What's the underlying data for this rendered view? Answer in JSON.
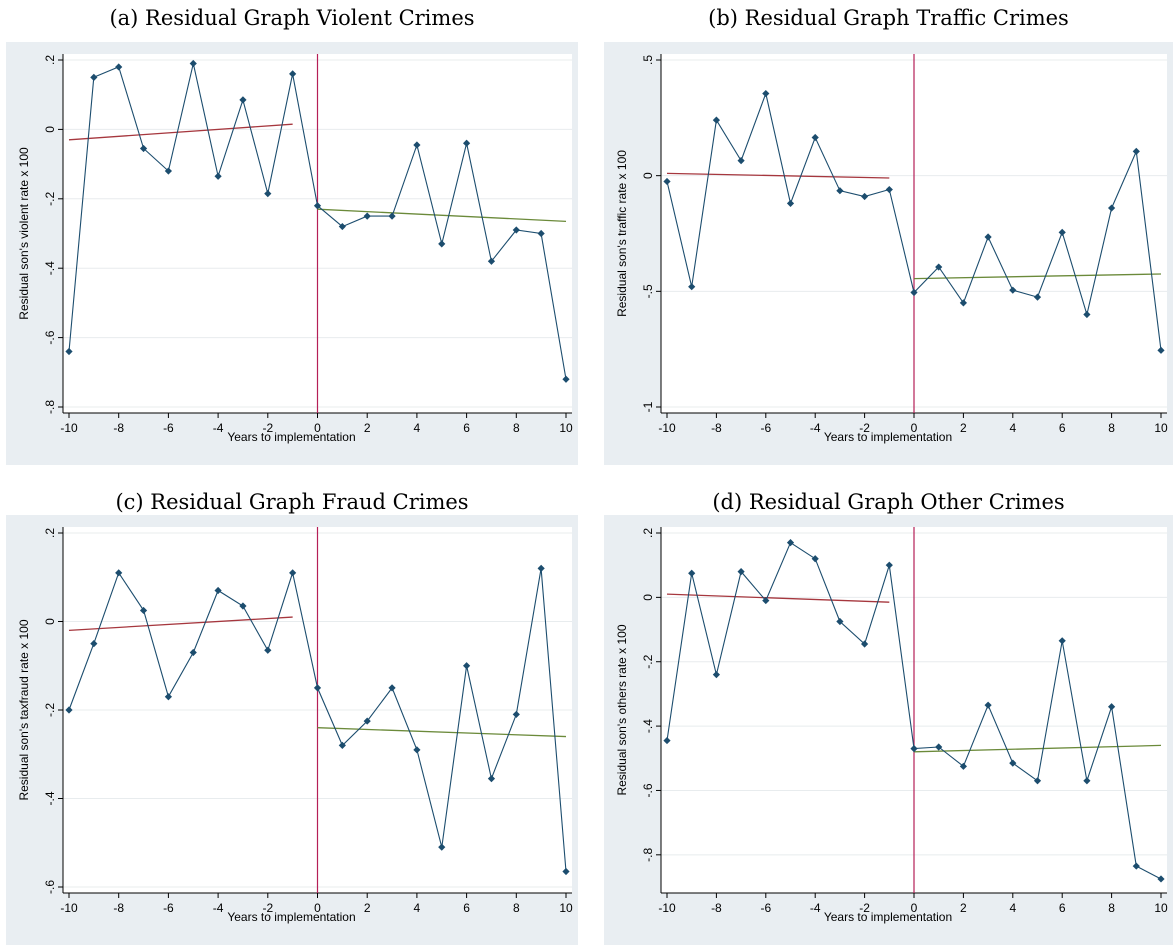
{
  "colors": {
    "panel_bg": "#e9eef2",
    "plot_bg": "#ffffff",
    "series": "#1c4d6e",
    "vline": "#b51f57",
    "fit_pre": "#a6373e",
    "fit_post": "#6b8a3a",
    "grid": "#e8ecee"
  },
  "chart_data": [
    {
      "type": "line",
      "caption": "(a) Residual Graph Violent Crimes",
      "xlabel": "Years to implementation",
      "ylabel": "Residual son's violent rate x 100",
      "xlim": [
        -10,
        10
      ],
      "ylim": [
        -0.8,
        0.2
      ],
      "xticks": [
        -10,
        -8,
        -6,
        -4,
        -2,
        0,
        2,
        4,
        6,
        8,
        10
      ],
      "yticks": [
        -0.8,
        -0.6,
        -0.4,
        -0.2,
        0,
        0.2
      ],
      "ytick_labels": [
        "-.8",
        "-.6",
        "-.4",
        "-.2",
        "0",
        ".2"
      ],
      "x": [
        -10,
        -9,
        -8,
        -7,
        -6,
        -5,
        -4,
        -3,
        -2,
        -1,
        0,
        1,
        2,
        3,
        4,
        5,
        6,
        7,
        8,
        9,
        10
      ],
      "values": [
        -0.64,
        0.15,
        0.18,
        -0.055,
        -0.12,
        0.19,
        -0.135,
        0.085,
        -0.185,
        0.16,
        -0.22,
        -0.28,
        -0.25,
        -0.25,
        -0.045,
        -0.33,
        -0.04,
        -0.38,
        -0.29,
        -0.3,
        -0.72
      ],
      "fit_pre": {
        "x": [
          -10,
          -1
        ],
        "y": [
          -0.03,
          0.015
        ]
      },
      "fit_post": {
        "x": [
          0,
          10
        ],
        "y": [
          -0.23,
          -0.265
        ]
      },
      "vline_x": 0
    },
    {
      "type": "line",
      "caption": "(b) Residual Graph Traffic Crimes",
      "xlabel": "Years to implementation",
      "ylabel": "Residual son's traffic rate x 100",
      "xlim": [
        -10,
        10
      ],
      "ylim": [
        -1,
        0.5
      ],
      "xticks": [
        -10,
        -8,
        -6,
        -4,
        -2,
        0,
        2,
        4,
        6,
        8,
        10
      ],
      "yticks": [
        -1,
        -0.5,
        0,
        0.5
      ],
      "ytick_labels": [
        "-1",
        "-.5",
        "0",
        ".5"
      ],
      "x": [
        -10,
        -9,
        -8,
        -7,
        -6,
        -5,
        -4,
        -3,
        -2,
        -1,
        0,
        1,
        2,
        3,
        4,
        5,
        6,
        7,
        8,
        9,
        10
      ],
      "values": [
        -0.025,
        -0.48,
        0.24,
        0.065,
        0.355,
        -0.12,
        0.165,
        -0.065,
        -0.09,
        -0.06,
        -0.505,
        -0.395,
        -0.55,
        -0.265,
        -0.495,
        -0.525,
        -0.245,
        -0.6,
        -0.14,
        0.105,
        -0.755
      ],
      "fit_pre": {
        "x": [
          -10,
          -1
        ],
        "y": [
          0.01,
          -0.01
        ]
      },
      "fit_post": {
        "x": [
          0,
          10
        ],
        "y": [
          -0.445,
          -0.425
        ]
      },
      "vline_x": 0
    },
    {
      "type": "line",
      "caption": "(c) Residual Graph Fraud Crimes",
      "xlabel": "Years to implementation",
      "ylabel": "Residual son's taxfraud rate x 100",
      "xlim": [
        -10,
        10
      ],
      "ylim": [
        -0.6,
        0.2
      ],
      "xticks": [
        -10,
        -8,
        -6,
        -4,
        -2,
        0,
        2,
        4,
        6,
        8,
        10
      ],
      "yticks": [
        -0.6,
        -0.4,
        -0.2,
        0,
        0.2
      ],
      "ytick_labels": [
        "-.6",
        "-.4",
        "-.2",
        "0",
        ".2"
      ],
      "x": [
        -10,
        -9,
        -8,
        -7,
        -6,
        -5,
        -4,
        -3,
        -2,
        -1,
        0,
        1,
        2,
        3,
        4,
        5,
        6,
        7,
        8,
        9,
        10
      ],
      "values": [
        -0.2,
        -0.05,
        0.11,
        0.025,
        -0.17,
        -0.07,
        0.07,
        0.035,
        -0.065,
        0.11,
        -0.15,
        -0.28,
        -0.225,
        -0.15,
        -0.29,
        -0.51,
        -0.1,
        -0.355,
        -0.21,
        0.12,
        -0.565
      ],
      "fit_pre": {
        "x": [
          -10,
          -1
        ],
        "y": [
          -0.02,
          0.01
        ]
      },
      "fit_post": {
        "x": [
          0,
          10
        ],
        "y": [
          -0.24,
          -0.26
        ]
      },
      "vline_x": 0
    },
    {
      "type": "line",
      "caption": "(d) Residual Graph Other Crimes",
      "xlabel": "Years to implementation",
      "ylabel": "Residual son's others rate x 100",
      "xlim": [
        -10,
        10
      ],
      "ylim": [
        -0.9,
        0.2
      ],
      "xticks": [
        -10,
        -8,
        -6,
        -4,
        -2,
        0,
        2,
        4,
        6,
        8,
        10
      ],
      "yticks": [
        -0.8,
        -0.6,
        -0.4,
        -0.2,
        0,
        0.2
      ],
      "ytick_labels": [
        "-.8",
        "-.6",
        "-.4",
        "-.2",
        "0",
        ".2"
      ],
      "x": [
        -10,
        -9,
        -8,
        -7,
        -6,
        -5,
        -4,
        -3,
        -2,
        -1,
        0,
        1,
        2,
        3,
        4,
        5,
        6,
        7,
        8,
        9,
        10
      ],
      "values": [
        -0.445,
        0.075,
        -0.24,
        0.08,
        -0.01,
        0.17,
        0.12,
        -0.075,
        -0.145,
        0.1,
        -0.47,
        -0.465,
        -0.525,
        -0.335,
        -0.515,
        -0.57,
        -0.135,
        -0.57,
        -0.34,
        -0.835,
        -0.875
      ],
      "fit_pre": {
        "x": [
          -10,
          -1
        ],
        "y": [
          0.01,
          -0.015
        ]
      },
      "fit_post": {
        "x": [
          0,
          10
        ],
        "y": [
          -0.48,
          -0.46
        ]
      },
      "vline_x": 0
    }
  ]
}
